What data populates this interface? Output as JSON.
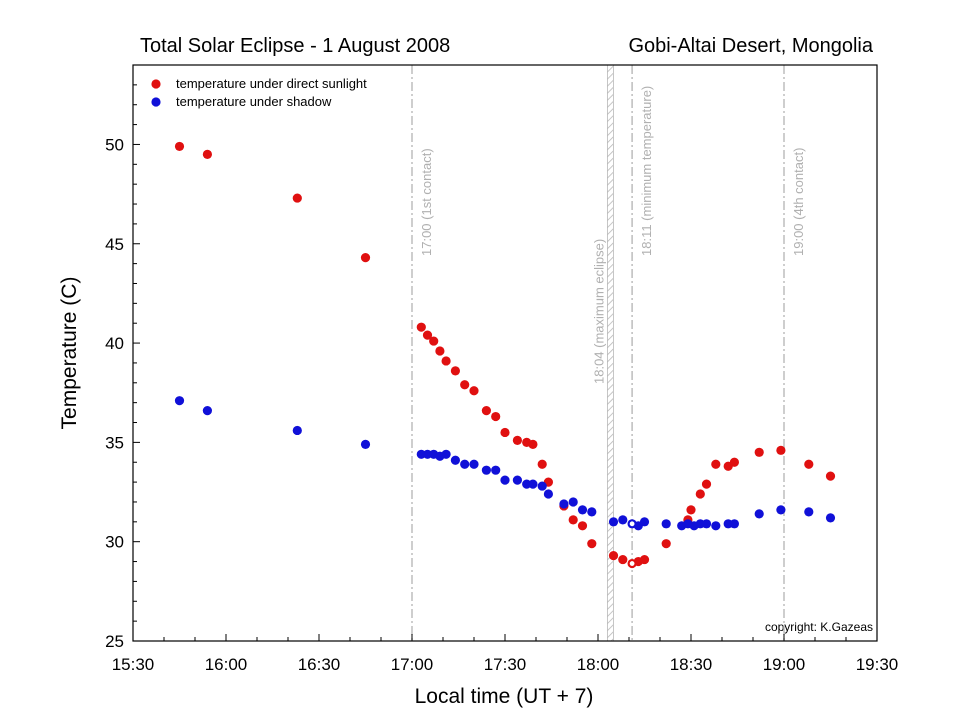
{
  "chart_data": {
    "type": "scatter",
    "title_left": "Total Solar Eclipse - 1 August 2008",
    "title_right": "Gobi-Altai Desert, Mongolia",
    "xlabel": "Local time  (UT + 7)",
    "ylabel": "Temperature (C)",
    "xlim": [
      "15:30",
      "19:30"
    ],
    "ylim": [
      25,
      54
    ],
    "x_ticks": [
      "15:30",
      "16:00",
      "16:30",
      "17:00",
      "17:30",
      "18:00",
      "18:30",
      "19:00",
      "19:30"
    ],
    "y_ticks": [
      25,
      30,
      35,
      40,
      45,
      50
    ],
    "legend_position": "top-left",
    "copyright": "copyright:  K.Gazeas",
    "markers": [
      {
        "time": "17:00",
        "label": "17:00 (1st contact)",
        "style": "dash-dot"
      },
      {
        "time": "18:04",
        "label": "18:04 (maximum eclipse)",
        "style": "hatched-band"
      },
      {
        "time": "18:11",
        "label": "18:11 (minimum temperature)",
        "style": "dash-dot"
      },
      {
        "time": "19:00",
        "label": "19:00 (4th contact)",
        "style": "dash-dot"
      }
    ],
    "series": [
      {
        "name": "temperature under direct sunlight",
        "color": "#e01010",
        "points": [
          [
            "15:45",
            49.9
          ],
          [
            "15:54",
            49.5
          ],
          [
            "16:23",
            47.3
          ],
          [
            "16:45",
            44.3
          ],
          [
            "17:03",
            40.8
          ],
          [
            "17:05",
            40.4
          ],
          [
            "17:07",
            40.1
          ],
          [
            "17:09",
            39.6
          ],
          [
            "17:11",
            39.1
          ],
          [
            "17:14",
            38.6
          ],
          [
            "17:17",
            37.9
          ],
          [
            "17:20",
            37.6
          ],
          [
            "17:24",
            36.6
          ],
          [
            "17:27",
            36.3
          ],
          [
            "17:30",
            35.5
          ],
          [
            "17:34",
            35.1
          ],
          [
            "17:37",
            35.0
          ],
          [
            "17:39",
            34.9
          ],
          [
            "17:42",
            33.9
          ],
          [
            "17:44",
            33.0
          ],
          [
            "17:49",
            31.8
          ],
          [
            "17:52",
            31.1
          ],
          [
            "17:55",
            30.8
          ],
          [
            "17:58",
            29.9
          ],
          [
            "18:05",
            29.3
          ],
          [
            "18:08",
            29.1
          ],
          [
            "18:11",
            28.9
          ],
          [
            "18:13",
            29.0
          ],
          [
            "18:15",
            29.1
          ],
          [
            "18:22",
            29.9
          ],
          [
            "18:29",
            31.1
          ],
          [
            "18:30",
            31.6
          ],
          [
            "18:33",
            32.4
          ],
          [
            "18:35",
            32.9
          ],
          [
            "18:38",
            33.9
          ],
          [
            "18:42",
            33.8
          ],
          [
            "18:44",
            34.0
          ],
          [
            "18:52",
            34.5
          ],
          [
            "18:59",
            34.6
          ],
          [
            "19:08",
            33.9
          ],
          [
            "19:15",
            33.3
          ]
        ]
      },
      {
        "name": "temperature under shadow",
        "color": "#1010d8",
        "points": [
          [
            "15:45",
            37.1
          ],
          [
            "15:54",
            36.6
          ],
          [
            "16:23",
            35.6
          ],
          [
            "16:45",
            34.9
          ],
          [
            "17:03",
            34.4
          ],
          [
            "17:05",
            34.4
          ],
          [
            "17:07",
            34.4
          ],
          [
            "17:09",
            34.3
          ],
          [
            "17:11",
            34.4
          ],
          [
            "17:14",
            34.1
          ],
          [
            "17:17",
            33.9
          ],
          [
            "17:20",
            33.9
          ],
          [
            "17:24",
            33.6
          ],
          [
            "17:27",
            33.6
          ],
          [
            "17:30",
            33.1
          ],
          [
            "17:34",
            33.1
          ],
          [
            "17:37",
            32.9
          ],
          [
            "17:39",
            32.9
          ],
          [
            "17:42",
            32.8
          ],
          [
            "17:44",
            32.4
          ],
          [
            "17:49",
            31.9
          ],
          [
            "17:52",
            32.0
          ],
          [
            "17:55",
            31.6
          ],
          [
            "17:58",
            31.5
          ],
          [
            "18:05",
            31.0
          ],
          [
            "18:08",
            31.1
          ],
          [
            "18:11",
            30.9
          ],
          [
            "18:13",
            30.8
          ],
          [
            "18:15",
            31.0
          ],
          [
            "18:22",
            30.9
          ],
          [
            "18:27",
            30.8
          ],
          [
            "18:29",
            30.9
          ],
          [
            "18:31",
            30.8
          ],
          [
            "18:33",
            30.9
          ],
          [
            "18:35",
            30.9
          ],
          [
            "18:38",
            30.8
          ],
          [
            "18:42",
            30.9
          ],
          [
            "18:44",
            30.9
          ],
          [
            "18:52",
            31.4
          ],
          [
            "18:59",
            31.6
          ],
          [
            "19:08",
            31.5
          ],
          [
            "19:15",
            31.2
          ]
        ]
      }
    ]
  }
}
